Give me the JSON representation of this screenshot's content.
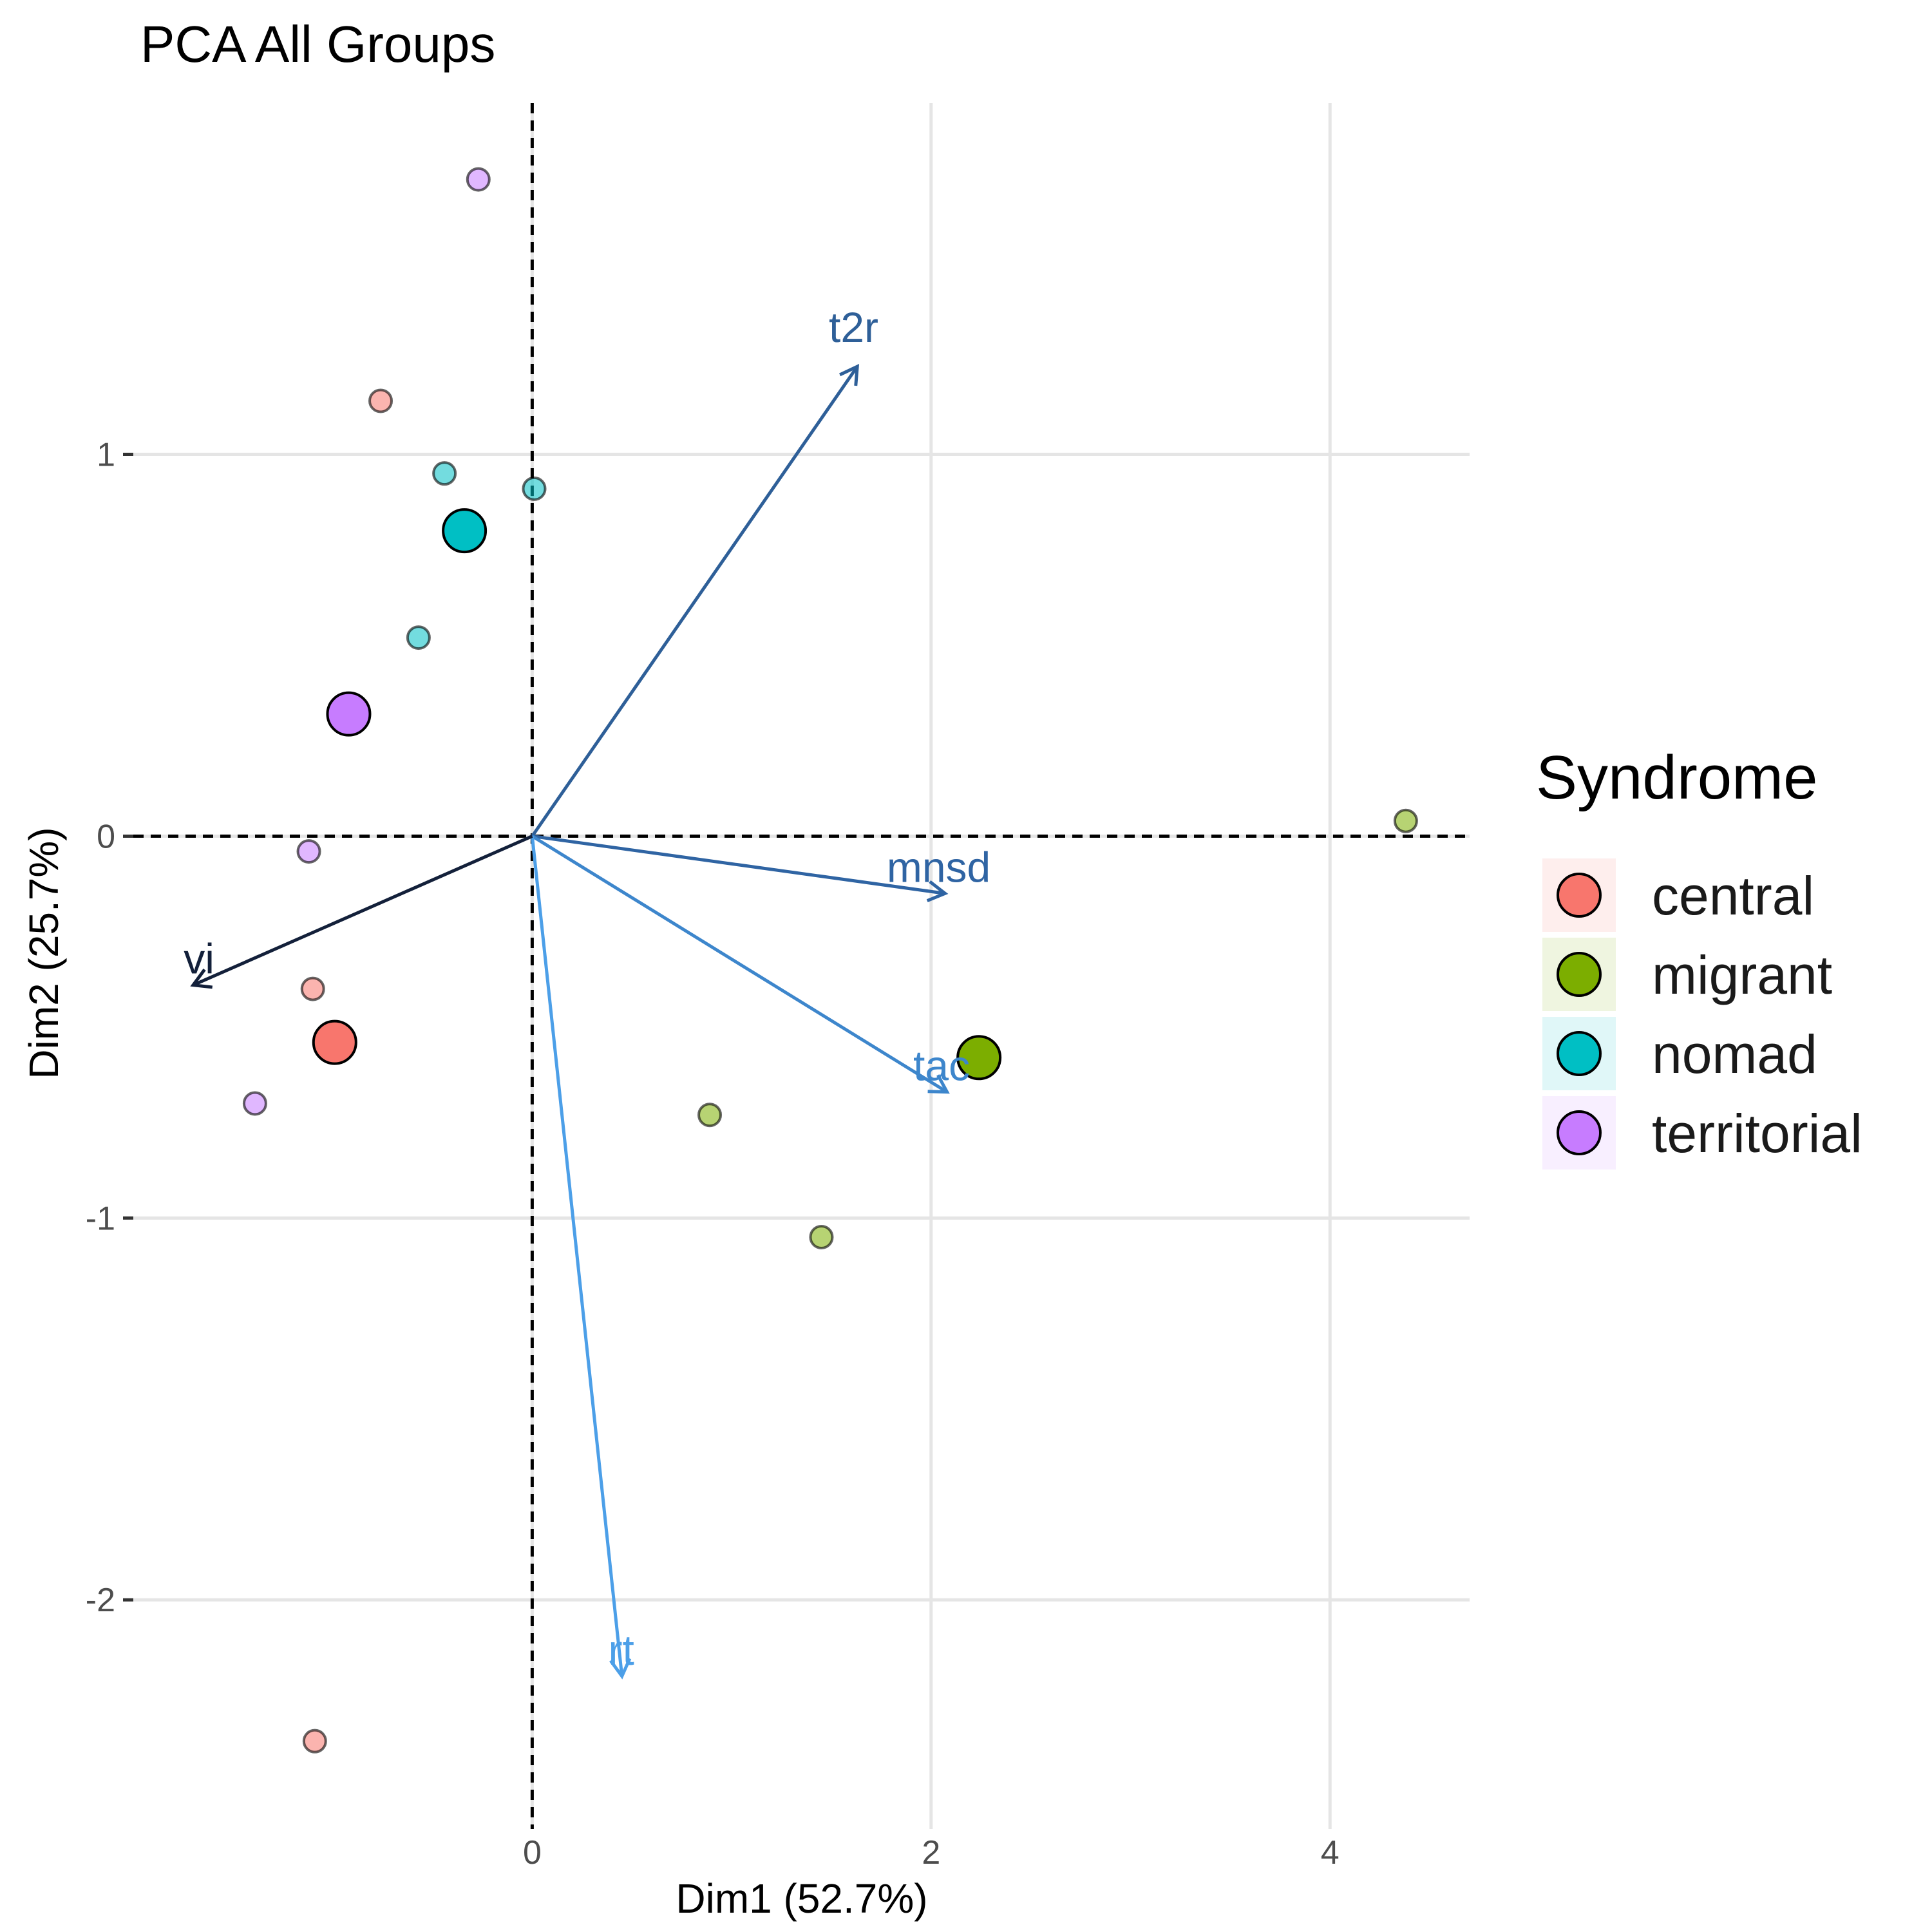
{
  "chart_data": {
    "type": "scatter",
    "title": "PCA All Groups",
    "xlabel": "Dim1 (52.7%)",
    "ylabel": "Dim2 (25.7%)",
    "xlim": [
      -2.0,
      4.7
    ],
    "ylim": [
      -2.6,
      1.92
    ],
    "xticks": [
      0,
      2,
      4
    ],
    "yticks": [
      -2,
      -1,
      0,
      1
    ],
    "xtick_labels": [
      "0",
      "2",
      "4"
    ],
    "ytick_labels": [
      "-2",
      "-1",
      "0",
      "1"
    ],
    "legend": {
      "title": "Syndrome",
      "position": "right",
      "entries": [
        {
          "label": "central",
          "color": "#F8766D"
        },
        {
          "label": "migrant",
          "color": "#7CAE00"
        },
        {
          "label": "nomad",
          "color": "#00BFC4"
        },
        {
          "label": "territorial",
          "color": "#C77CFF"
        }
      ]
    },
    "series": [
      {
        "name": "central",
        "color": "#F8766D",
        "points": [
          [
            -0.76,
            1.14
          ],
          [
            -1.1,
            -0.4
          ],
          [
            -1.09,
            -2.37
          ]
        ],
        "centroid": [
          -0.99,
          -0.54
        ]
      },
      {
        "name": "migrant",
        "color": "#7CAE00",
        "points": [
          [
            0.89,
            -0.73
          ],
          [
            1.45,
            -1.05
          ],
          [
            4.38,
            0.04
          ]
        ],
        "centroid": [
          2.24,
          -0.58
        ]
      },
      {
        "name": "nomad",
        "color": "#00BFC4",
        "points": [
          [
            -0.44,
            0.95
          ],
          [
            0.01,
            0.91
          ],
          [
            -0.57,
            0.52
          ]
        ],
        "centroid": [
          -0.34,
          0.8
        ]
      },
      {
        "name": "territorial",
        "color": "#C77CFF",
        "points": [
          [
            -0.27,
            1.72
          ],
          [
            -1.12,
            -0.04
          ],
          [
            -1.39,
            -0.7
          ]
        ],
        "centroid": [
          -0.92,
          0.32
        ]
      }
    ],
    "variables": [
      {
        "name": "t2r",
        "x": 1.63,
        "y": 1.23,
        "color": "#2E5F98"
      },
      {
        "name": "mnsd",
        "x": 2.07,
        "y": -0.15,
        "color": "#2F64A3"
      },
      {
        "name": "tac",
        "x": 2.08,
        "y": -0.67,
        "color": "#3D86CC"
      },
      {
        "name": "rt",
        "x": 0.45,
        "y": -2.2,
        "color": "#4C9FE8"
      },
      {
        "name": "vi",
        "x": -1.7,
        "y": -0.39,
        "color": "#13203A"
      }
    ]
  }
}
